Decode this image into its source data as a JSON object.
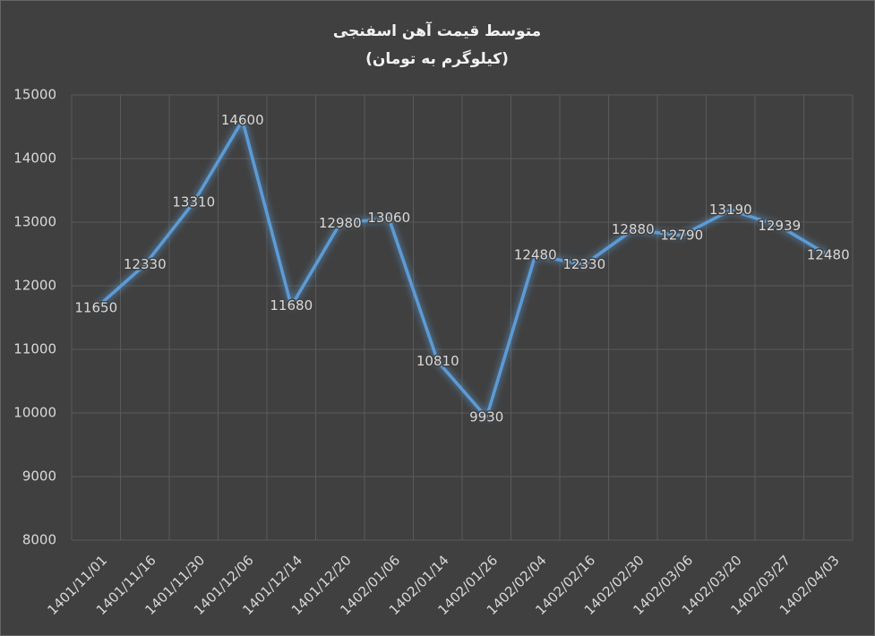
{
  "chart_data": {
    "type": "line",
    "title": "متوسط قیمت آهن اسفنجی",
    "subtitle": "(کیلوگرم به تومان)",
    "categories": [
      "1401/11/01",
      "1401/11/16",
      "1401/11/30",
      "1401/12/06",
      "1401/12/14",
      "1401/12/20",
      "1402/01/06",
      "1402/01/14",
      "1402/01/26",
      "1402/02/04",
      "1402/02/16",
      "1402/02/30",
      "1402/03/06",
      "1402/03/20",
      "1402/03/27",
      "1402/04/03"
    ],
    "values": [
      11650,
      12330,
      13310,
      14600,
      11680,
      12980,
      13060,
      10810,
      9930,
      12480,
      12330,
      12880,
      12790,
      13190,
      12939,
      12480
    ],
    "color": "#5b9bd5",
    "ylim": [
      8000,
      15000
    ],
    "yticks": [
      8000,
      9000,
      10000,
      11000,
      12000,
      13000,
      14000,
      15000
    ],
    "grid": true
  }
}
